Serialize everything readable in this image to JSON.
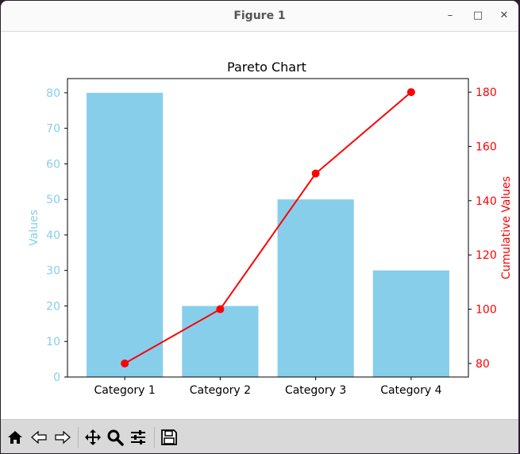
{
  "window": {
    "title": "Figure 1",
    "controls": {
      "minimize": "–",
      "maximize": "□",
      "close": "✕"
    }
  },
  "toolbar": {
    "buttons": [
      "home-icon",
      "back-icon",
      "forward-icon",
      "pan-icon",
      "zoom-icon",
      "configure-subplots-icon",
      "save-icon"
    ]
  },
  "chart_data": {
    "type": "bar",
    "title": "Pareto Chart",
    "categories": [
      "Category 1",
      "Category 2",
      "Category 3",
      "Category 4"
    ],
    "values": [
      80,
      20,
      50,
      30
    ],
    "bar_color": "#87CEEB",
    "ylabel": "Values",
    "ylim": [
      0,
      84
    ],
    "yticks": [
      0,
      10,
      20,
      30,
      40,
      50,
      60,
      70,
      80
    ],
    "secondary": {
      "type": "line",
      "label": "Cumulative Values",
      "values": [
        80,
        100,
        150,
        180
      ],
      "color": "#FF0000",
      "marker": "circle",
      "ylim": [
        75,
        185
      ],
      "yticks": [
        80,
        100,
        120,
        140,
        160,
        180
      ]
    },
    "grid": false,
    "legend": "none"
  }
}
